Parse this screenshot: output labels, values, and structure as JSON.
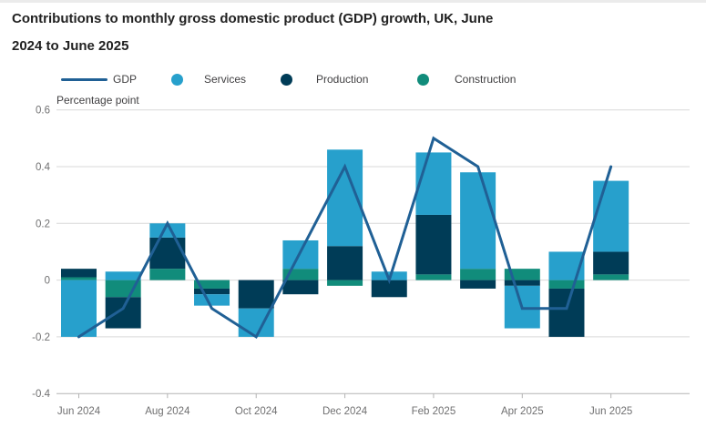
{
  "title": {
    "line1": "Contributions to monthly gross domestic product (GDP) growth, UK, June",
    "line2": "2024 to June 2025"
  },
  "legend": {
    "items": [
      {
        "label": "GDP",
        "swatch": "line",
        "color": "#206095"
      },
      {
        "label": "Services",
        "swatch": "dot",
        "color": "#27A0CC"
      },
      {
        "label": "Production",
        "swatch": "dot",
        "color": "#003C57"
      },
      {
        "label": "Construction",
        "swatch": "dot",
        "color": "#118C7B"
      }
    ]
  },
  "chart_data": {
    "type": "bar",
    "subtype": "stacked-bars-with-line-overlay",
    "title": "Contributions to monthly gross domestic product (GDP) growth, UK, June 2024 to June 2025",
    "ylabel": "Percentage point",
    "xlabel": "",
    "ylim": [
      -0.4,
      0.6
    ],
    "grid": true,
    "legend_position": "top",
    "categories": [
      "Jun 2024",
      "Jul 2024",
      "Aug 2024",
      "Sep 2024",
      "Oct 2024",
      "Nov 2024",
      "Dec 2024",
      "Jan 2025",
      "Feb 2025",
      "Mar 2025",
      "Apr 2025",
      "May 2025",
      "Jun 2025"
    ],
    "visible_xtick_indices": [
      0,
      2,
      4,
      6,
      8,
      10,
      12
    ],
    "yticks": [
      {
        "label": "0.6",
        "value": 0.6
      },
      {
        "label": "0.4",
        "value": 0.4
      },
      {
        "label": "0.2",
        "value": 0.2
      },
      {
        "label": "0",
        "value": 0
      },
      {
        "label": "-0.2",
        "value": -0.2
      },
      {
        "label": "-0.4",
        "value": -0.4
      }
    ],
    "stack_order": [
      "Construction",
      "Production",
      "Services"
    ],
    "series": [
      {
        "name": "Services",
        "color": "#27A0CC",
        "values": [
          -0.2,
          0.03,
          0.05,
          -0.04,
          -0.1,
          0.1,
          0.34,
          0.03,
          0.22,
          0.34,
          -0.15,
          0.1,
          0.25
        ]
      },
      {
        "name": "Production",
        "color": "#003C57",
        "values": [
          0.03,
          -0.11,
          0.11,
          -0.02,
          -0.1,
          -0.05,
          0.12,
          -0.06,
          0.21,
          -0.03,
          -0.02,
          -0.17,
          0.08
        ]
      },
      {
        "name": "Construction",
        "color": "#118C7B",
        "values": [
          0.01,
          -0.06,
          0.04,
          -0.03,
          0.0,
          0.04,
          -0.02,
          0.0,
          0.02,
          0.04,
          0.04,
          -0.03,
          0.02
        ]
      }
    ],
    "line_series": {
      "name": "GDP",
      "color": "#206095",
      "values": [
        -0.2,
        -0.1,
        0.2,
        -0.1,
        -0.2,
        0.1,
        0.4,
        0.0,
        0.5,
        0.4,
        -0.1,
        -0.1,
        0.4
      ]
    },
    "colors": {
      "gridline": "#d9d9d9",
      "axis_line": "#b3b3b3",
      "tick_text": "#707071"
    }
  }
}
